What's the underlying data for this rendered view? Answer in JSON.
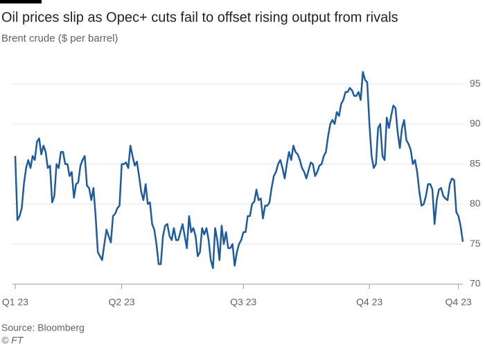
{
  "chart_data": {
    "type": "line",
    "title": "Oil prices slip as Opec+ cuts fail to offset rising output from rivals",
    "subtitle": "Brent crude ($ per barrel)",
    "source": "Source: Bloomberg",
    "credit": "© FT",
    "color": "#1d5a9e",
    "grid": true,
    "ylim": [
      70,
      97
    ],
    "yticks": [
      70,
      75,
      80,
      85,
      90,
      95
    ],
    "categories": [
      "Q1 23",
      null,
      null,
      null,
      null,
      null,
      null,
      null,
      null,
      null,
      null,
      null,
      null,
      null,
      null,
      null,
      null,
      null,
      null,
      null,
      null,
      null,
      null,
      null,
      null,
      null,
      null,
      null,
      null,
      null,
      null,
      null,
      null,
      null,
      null,
      null,
      null,
      null,
      null,
      null,
      null,
      null,
      null,
      null,
      null,
      null,
      null,
      null,
      null,
      "Q2 23",
      null,
      null,
      null,
      null,
      null,
      null,
      null,
      null,
      null,
      null,
      null,
      null,
      null,
      null,
      null,
      null,
      null,
      null,
      null,
      null,
      null,
      null,
      null,
      null,
      null,
      null,
      null,
      null,
      null,
      null,
      null,
      null,
      null,
      null,
      null,
      null,
      null,
      null,
      null,
      null,
      null,
      null,
      null,
      null,
      null,
      null,
      null,
      null,
      null,
      null,
      null,
      null,
      null,
      null,
      null,
      "Q3 23",
      null,
      null,
      null,
      null,
      null,
      null,
      null,
      null,
      null,
      null,
      null,
      null,
      null,
      null,
      null,
      null,
      null,
      null,
      null,
      null,
      null,
      null,
      null,
      null,
      null,
      null,
      null,
      null,
      null,
      null,
      null,
      null,
      null,
      null,
      null,
      null,
      null,
      null,
      null,
      null,
      null,
      null,
      null,
      null,
      null,
      null,
      null,
      null,
      null,
      null,
      null,
      null,
      null,
      null,
      null,
      null,
      null,
      "Q4 23",
      null,
      null,
      null,
      null,
      null,
      null,
      null,
      null,
      null,
      null,
      null,
      null,
      null,
      null,
      null,
      null,
      null,
      null,
      null,
      null,
      null,
      null,
      null,
      null,
      null,
      null,
      null,
      null,
      null,
      null,
      null,
      null,
      null,
      null,
      null,
      null,
      null,
      null,
      null,
      null,
      "Q4 23",
      null,
      null
    ],
    "values": [
      86,
      78,
      78.5,
      79.5,
      82.5,
      84.5,
      85.5,
      84.5,
      86,
      85.5,
      87.8,
      88.2,
      86.2,
      87.3,
      86.5,
      84.5,
      84.8,
      80.2,
      81,
      85,
      84.5,
      86.5,
      86.5,
      85,
      85,
      83.5,
      84,
      80.8,
      82.5,
      82.7,
      84.8,
      85.5,
      86,
      82.3,
      82,
      80.5,
      82,
      78.5,
      74,
      73.5,
      73,
      75,
      76.8,
      76,
      75.2,
      78.5,
      78.8,
      79.5,
      79.8,
      85,
      85,
      85.2,
      84.5,
      87.3,
      86,
      84.8,
      85.3,
      83.5,
      81.5,
      80.5,
      82.5,
      80,
      80.2,
      77.5,
      76.8,
      75,
      72.5,
      72.5,
      76,
      77.3,
      77.5,
      76,
      75.5,
      77,
      75.5,
      75.5,
      76.5,
      77.5,
      76,
      74.5,
      78.5,
      76.5,
      77,
      76,
      73.5,
      74,
      77,
      76.2,
      77,
      75.5,
      73,
      72,
      77,
      75.5,
      73,
      77.3,
      75,
      76.5,
      74.5,
      74.5,
      75,
      72.3,
      74,
      75,
      75.5,
      76.5,
      76.5,
      78.5,
      78.5,
      80,
      80.3,
      81.8,
      80.5,
      80.7,
      78.2,
      79.8,
      79.8,
      80.2,
      82,
      83.5,
      84,
      85,
      85.5,
      84.5,
      83.2,
      85,
      86.5,
      85.5,
      87.3,
      86.5,
      86.2,
      85.5,
      84.5,
      84,
      83.2,
      84.2,
      85.2,
      85,
      83.5,
      84,
      84.8,
      85,
      86,
      86.5,
      88.5,
      90,
      90.5,
      90,
      91.5,
      91,
      92.5,
      93,
      94,
      94,
      94.5,
      94.2,
      93.5,
      93.5,
      94,
      93,
      96.5,
      95.5,
      95.2,
      90,
      86,
      84.5,
      85,
      89.5,
      90,
      86,
      85.5,
      90.8,
      89.5,
      91,
      92.3,
      92,
      89,
      87,
      89.5,
      90.5,
      88,
      87.5,
      86.8,
      85,
      85.5,
      84,
      81.5,
      79.8,
      80,
      81,
      82.5,
      82.5,
      81.8,
      77.5,
      80.5,
      81.8,
      82,
      81,
      80.7,
      80.5,
      82.5,
      83.2,
      83,
      79,
      78.5,
      77.2,
      75.3
    ]
  }
}
